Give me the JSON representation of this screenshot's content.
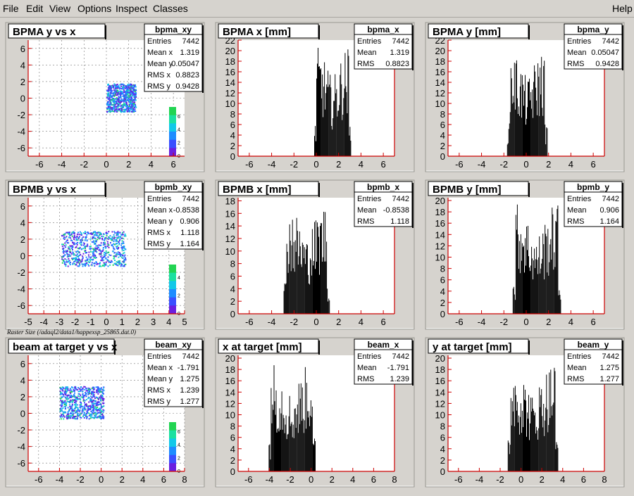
{
  "menu": {
    "file": "File",
    "edit": "Edit",
    "view": "View",
    "options": "Options",
    "inspect": "Inspect",
    "classes": "Classes",
    "help": "Help"
  },
  "caption": "Raster Size (/adaql2/data1/happexsp_25865.dat.0)",
  "stat_labels": {
    "entries": "Entries",
    "mean": "Mean",
    "rms": "RMS",
    "mean_x": "Mean x",
    "mean_y": "Mean y",
    "rms_x": "RMS x",
    "rms_y": "RMS y"
  },
  "colors": {
    "pad_bg": "#ffffff",
    "frame": "#d6d3ce",
    "axis_red": "#cc0000",
    "hist": "#000000"
  },
  "chart_data": [
    {
      "id": "bpma_xy",
      "type": "heatmap",
      "title": "BPMA y vs x",
      "name": "bpma_xy",
      "xlim": [
        -7,
        7
      ],
      "ylim": [
        -7,
        7
      ],
      "grid": true,
      "xticks": [
        -6,
        -4,
        -2,
        0,
        2,
        4,
        6
      ],
      "yticks": [
        -6,
        -4,
        -2,
        0,
        2,
        4,
        6
      ],
      "cluster": {
        "x": [
          0,
          2.6
        ],
        "y": [
          -1.6,
          1.8
        ]
      },
      "palette_ticks": [
        0,
        2,
        4,
        6
      ],
      "stats": {
        "entries": "7442",
        "mean_x": "1.319",
        "mean_y": "0.05047",
        "rms_x": "0.8823",
        "rms_y": "0.9428"
      }
    },
    {
      "id": "bpma_x",
      "type": "bar",
      "title": "BPMA x [mm]",
      "name": "bpma_x",
      "xlim": [
        -7,
        7
      ],
      "ylim": [
        0,
        22
      ],
      "xticks": [
        -6,
        -4,
        -2,
        0,
        2,
        4,
        6
      ],
      "yticks": [
        0,
        2,
        4,
        6,
        8,
        10,
        12,
        14,
        16,
        18,
        20,
        22
      ],
      "dist": {
        "lo": -0.2,
        "hi": 3.1,
        "peak": 21,
        "base": 6
      },
      "stats": {
        "entries": "7442",
        "mean": "1.319",
        "rms": "0.8823"
      }
    },
    {
      "id": "bpma_y",
      "type": "bar",
      "title": "BPMA y [mm]",
      "name": "bpma_y",
      "xlim": [
        -7,
        7
      ],
      "ylim": [
        0,
        22
      ],
      "xticks": [
        -6,
        -4,
        -2,
        0,
        2,
        4,
        6
      ],
      "yticks": [
        0,
        2,
        4,
        6,
        8,
        10,
        12,
        14,
        16,
        18,
        20,
        22
      ],
      "dist": {
        "lo": -1.7,
        "hi": 1.9,
        "peak": 21,
        "base": 6
      },
      "stats": {
        "entries": "7442",
        "mean": "0.05047",
        "rms": "0.9428"
      }
    },
    {
      "id": "bpmb_xy",
      "type": "heatmap",
      "title": "BPMB y vs x",
      "name": "bpmb_xy",
      "xlim": [
        -5,
        5
      ],
      "ylim": [
        -7,
        7
      ],
      "grid": true,
      "xticks": [
        -5,
        -4,
        -3,
        -2,
        -1,
        0,
        1,
        2,
        3,
        4,
        5
      ],
      "yticks": [
        -6,
        -4,
        -2,
        0,
        2,
        4,
        6
      ],
      "cluster": {
        "x": [
          -2.9,
          1.2
        ],
        "y": [
          -1.2,
          3.0
        ]
      },
      "palette_ticks": [
        0,
        2,
        4
      ],
      "stats": {
        "entries": "7442",
        "mean_x": "-0.8538",
        "mean_y": "0.906",
        "rms_x": "1.118",
        "rms_y": "1.164"
      }
    },
    {
      "id": "bpmb_x",
      "type": "bar",
      "title": "BPMB x [mm]",
      "name": "bpmb_x",
      "xlim": [
        -7,
        7
      ],
      "ylim": [
        0,
        18.5
      ],
      "xticks": [
        -6,
        -4,
        -2,
        0,
        2,
        4,
        6
      ],
      "yticks": [
        0,
        2,
        4,
        6,
        8,
        10,
        12,
        14,
        16,
        18
      ],
      "dist": {
        "lo": -2.9,
        "hi": 1.2,
        "peak": 18,
        "base": 5
      },
      "stats": {
        "entries": "7442",
        "mean": "-0.8538",
        "rms": "1.118"
      }
    },
    {
      "id": "bpmb_y",
      "type": "bar",
      "title": "BPMB y [mm]",
      "name": "bpmb_y",
      "xlim": [
        -7,
        7
      ],
      "ylim": [
        0,
        20.5
      ],
      "xticks": [
        -6,
        -4,
        -2,
        0,
        2,
        4,
        6
      ],
      "yticks": [
        0,
        2,
        4,
        6,
        8,
        10,
        12,
        14,
        16,
        18,
        20
      ],
      "dist": {
        "lo": -1.2,
        "hi": 3.1,
        "peak": 20,
        "base": 5
      },
      "stats": {
        "entries": "7442",
        "mean": "0.906",
        "rms": "1.164"
      }
    },
    {
      "id": "beam_xy",
      "type": "heatmap",
      "title": "beam at target y vs x",
      "name": "beam_xy",
      "xlim": [
        -7,
        8
      ],
      "ylim": [
        -7,
        7
      ],
      "grid": true,
      "xticks": [
        -6,
        -4,
        -2,
        0,
        2,
        4,
        6,
        8
      ],
      "yticks": [
        -6,
        -4,
        -2,
        0,
        2,
        4,
        6
      ],
      "cluster": {
        "x": [
          -4.0,
          0.2
        ],
        "y": [
          -0.6,
          3.3
        ]
      },
      "palette_ticks": [
        0,
        2,
        4,
        6
      ],
      "stats": {
        "entries": "7442",
        "mean_x": "-1.791",
        "mean_y": "1.275",
        "rms_x": "1.239",
        "rms_y": "1.277"
      }
    },
    {
      "id": "beam_x",
      "type": "bar",
      "title": "x at target [mm]",
      "name": "beam_x",
      "xlim": [
        -7,
        8
      ],
      "ylim": [
        0,
        20.5
      ],
      "xticks": [
        -6,
        -4,
        -2,
        0,
        2,
        4,
        6,
        8
      ],
      "yticks": [
        0,
        2,
        4,
        6,
        8,
        10,
        12,
        14,
        16,
        18,
        20
      ],
      "dist": {
        "lo": -4.1,
        "hi": 0.4,
        "peak": 20,
        "base": 5
      },
      "stats": {
        "entries": "7442",
        "mean": "-1.791",
        "rms": "1.239"
      }
    },
    {
      "id": "beam_y",
      "type": "bar",
      "title": "y at target [mm]",
      "name": "beam_y",
      "xlim": [
        -7,
        8
      ],
      "ylim": [
        0,
        20.5
      ],
      "xticks": [
        -6,
        -4,
        -2,
        0,
        2,
        4,
        6,
        8
      ],
      "yticks": [
        0,
        2,
        4,
        6,
        8,
        10,
        12,
        14,
        16,
        18,
        20
      ],
      "dist": {
        "lo": -1.3,
        "hi": 3.6,
        "peak": 20,
        "base": 5
      },
      "stats": {
        "entries": "7442",
        "mean": "1.275",
        "rms": "1.277"
      }
    }
  ]
}
